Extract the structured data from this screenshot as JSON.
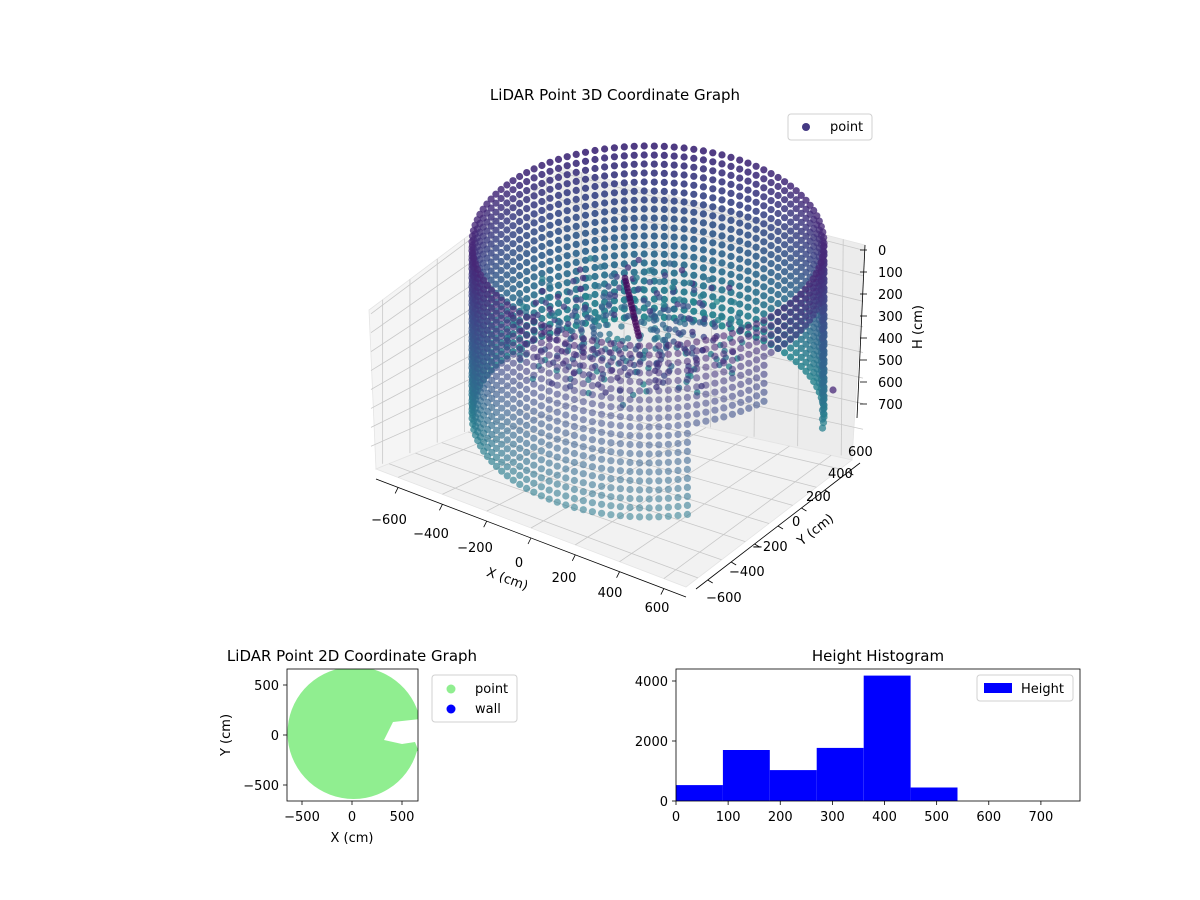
{
  "figure": {
    "charts_3d": {
      "title": "LiDAR Point 3D Coordinate Graph",
      "legend": {
        "label": "point",
        "color": "#443983"
      }
    },
    "chart_2d": {
      "title": "LiDAR Point 2D Coordinate Graph",
      "xlabel": "X (cm)",
      "ylabel": "Y (cm)",
      "legend": [
        {
          "label": "point",
          "color": "#90ee90"
        },
        {
          "label": "wall",
          "color": "#0000ff"
        }
      ]
    },
    "histogram": {
      "title": "Height Histogram",
      "legend": {
        "label": "Height",
        "color": "#0000ff"
      }
    }
  },
  "chart_data": [
    {
      "type": "scatter",
      "title": "LiDAR Point 3D Coordinate Graph",
      "xlabel": "X (cm)",
      "ylabel": "Y (cm)",
      "zlabel": "H (cm)",
      "xlim": [
        -700,
        700
      ],
      "ylim": [
        -700,
        700
      ],
      "zlim": [
        0,
        780
      ],
      "z_inverted": true,
      "xticks": [
        -600,
        -400,
        -200,
        0,
        200,
        400,
        600
      ],
      "yticks": [
        -600,
        -400,
        -200,
        0,
        200,
        400,
        600
      ],
      "zticks": [
        0,
        100,
        200,
        300,
        400,
        500,
        600,
        700
      ],
      "xtick_labels": [
        "−600",
        "−400",
        "−200",
        "0",
        "200",
        "400",
        "600"
      ],
      "ytick_labels": [
        "−600",
        "−400",
        "−200",
        "0",
        "200",
        "400",
        "600"
      ],
      "ztick_labels": [
        "0",
        "100",
        "200",
        "300",
        "400",
        "500",
        "600",
        "700"
      ],
      "colormap": "viridis",
      "legend": [
        "point"
      ],
      "legend_position": "upper-right",
      "grid": true
    },
    {
      "type": "scatter",
      "title": "LiDAR Point 2D Coordinate Graph",
      "xlabel": "X (cm)",
      "ylabel": "Y (cm)",
      "xlim": [
        -650,
        650
      ],
      "ylim": [
        -650,
        650
      ],
      "xticks": [
        -500,
        0,
        500
      ],
      "yticks": [
        -500,
        0,
        500
      ],
      "xtick_labels": [
        "−500",
        "0",
        "500"
      ],
      "ytick_labels": [
        "−500",
        "0",
        "500"
      ],
      "series": [
        {
          "name": "point",
          "color": "#90ee90"
        },
        {
          "name": "wall",
          "color": "#0000ff"
        }
      ],
      "legend_position": "outside-right"
    },
    {
      "type": "bar",
      "title": "Height Histogram",
      "bin_edges": [
        0,
        90,
        180,
        270,
        360,
        450,
        540,
        630,
        720
      ],
      "values": [
        530,
        1700,
        1030,
        1770,
        4180,
        450,
        0,
        0
      ],
      "xlim": [
        0,
        775
      ],
      "ylim": [
        0,
        4400
      ],
      "xticks": [
        0,
        100,
        200,
        300,
        400,
        500,
        600,
        700
      ],
      "yticks": [
        0,
        2000,
        4000
      ],
      "xtick_labels": [
        "0",
        "100",
        "200",
        "300",
        "400",
        "500",
        "600",
        "700"
      ],
      "ytick_labels": [
        "0",
        "2000",
        "4000"
      ],
      "series": [
        {
          "name": "Height",
          "color": "#0000ff"
        }
      ],
      "legend_position": "upper-right"
    }
  ]
}
